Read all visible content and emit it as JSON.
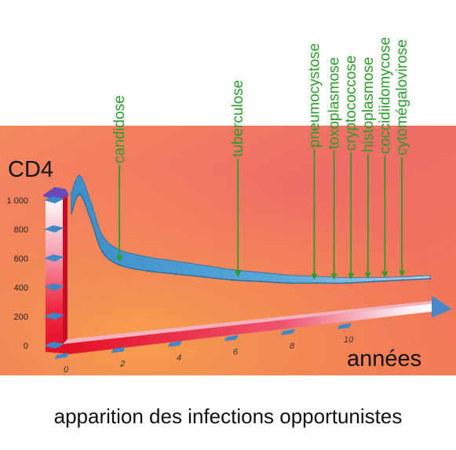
{
  "chart_data": {
    "type": "line",
    "title": "",
    "ylabel": "CD4",
    "xlabel": "années",
    "caption": "apparition des infections opportunistes",
    "y_ticks": [
      {
        "value": 0,
        "label": "0"
      },
      {
        "value": 200,
        "label": "200"
      },
      {
        "value": 400,
        "label": "400"
      },
      {
        "value": 600,
        "label": "600"
      },
      {
        "value": 800,
        "label": "800"
      },
      {
        "value": 1000,
        "label": "1 000"
      }
    ],
    "x_ticks": [
      {
        "value": 0,
        "label": "0"
      },
      {
        "value": 2,
        "label": "2"
      },
      {
        "value": 4,
        "label": "4"
      },
      {
        "value": 6,
        "label": "6"
      },
      {
        "value": 8,
        "label": "8"
      },
      {
        "value": 10,
        "label": "10"
      }
    ],
    "xlim": [
      0,
      13
    ],
    "ylim": [
      0,
      1000
    ],
    "series": [
      {
        "x": [
          0.3,
          0.6,
          1.0,
          1.4,
          2.0,
          3.0,
          4.0,
          5.0,
          6.0,
          7.0,
          8.0,
          9.0,
          10.0,
          11.0,
          12.0,
          13.0
        ],
        "values": [
          880,
          1000,
          820,
          600,
          500,
          440,
          400,
          360,
          320,
          290,
          260,
          240,
          220,
          210,
          200,
          190
        ]
      }
    ],
    "infections": [
      {
        "label": "candidose",
        "x": 2
      },
      {
        "label": "tuberculose",
        "x": 6.2
      },
      {
        "label": "pneumocystose",
        "x": 8.9
      },
      {
        "label": "toxoplasmose",
        "x": 9.6
      },
      {
        "label": "cryptococcose",
        "x": 10.2
      },
      {
        "label": "histoplasmose",
        "x": 10.8
      },
      {
        "label": "coccidiidomycose",
        "x": 11.4
      },
      {
        "label": "cytomégalovirose",
        "x": 12.0
      }
    ],
    "colors": {
      "ribbon": "#4f9ed6",
      "ribbon_dark": "#2c6e9e",
      "y_bar_top": "#ffffff",
      "y_bar_bottom": "#e8102a",
      "x_bar": "#e8102a",
      "arrow_head": "#6a4ab8",
      "background_band": "#ef7d62",
      "label_green": "#2a9d2a"
    }
  }
}
